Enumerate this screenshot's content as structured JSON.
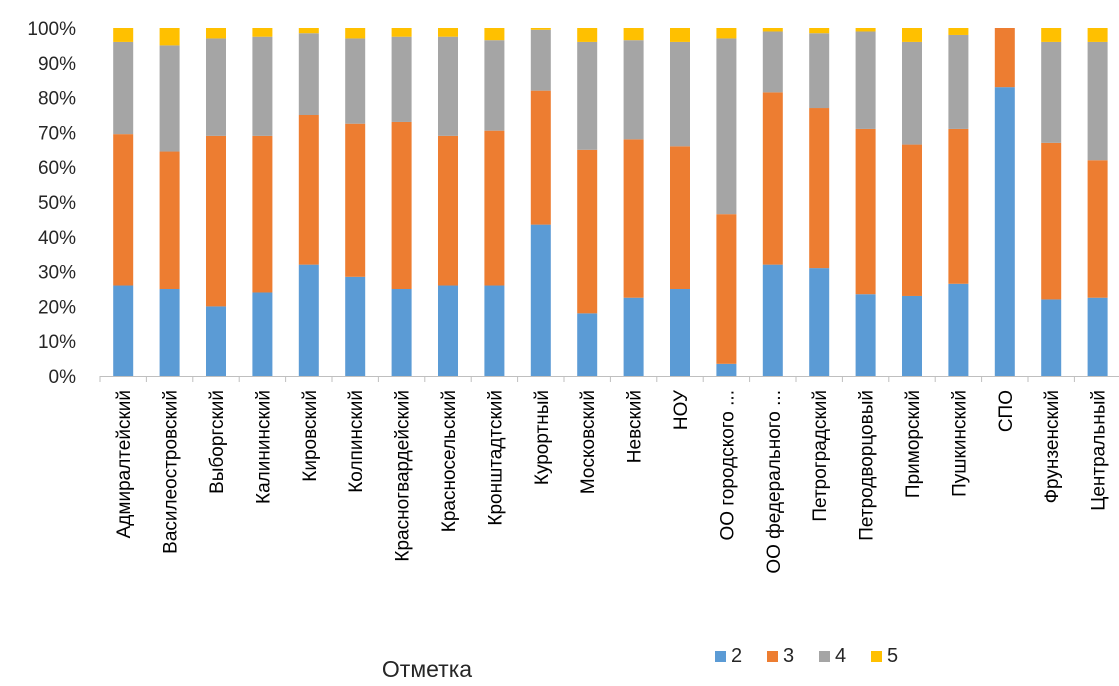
{
  "chart_data": {
    "type": "bar",
    "stacked": true,
    "percent": true,
    "title": "Отметка",
    "categories": [
      "Адмиралтейский",
      "Василеостровский",
      "Выборгский",
      "Калининский",
      "Кировский",
      "Колпинский",
      "Красногвардейский",
      "Красносельский",
      "Кронштадтский",
      "Курортный",
      "Московский",
      "Невский",
      "НОУ",
      "ОО городского ...",
      "ОО федерального ...",
      "Петроградский",
      "Петродворцовый",
      "Приморский",
      "Пушкинский",
      "СПО",
      "Фрунзенский",
      "Центральный"
    ],
    "series": [
      {
        "name": "2",
        "color": "#5B9BD5",
        "values": [
          26,
          25,
          20,
          24,
          32,
          28.5,
          25,
          26,
          26,
          43.5,
          18,
          22.5,
          25,
          3.5,
          32,
          31,
          23.5,
          23,
          26.5,
          83,
          22,
          22.5
        ]
      },
      {
        "name": "3",
        "color": "#ED7D31",
        "values": [
          43.5,
          39.5,
          49,
          45,
          43,
          44,
          48,
          43,
          44.5,
          38.5,
          47,
          45.5,
          41,
          43,
          49.5,
          46,
          47.5,
          43.5,
          44.5,
          17,
          45,
          39.5
        ]
      },
      {
        "name": "4",
        "color": "#A5A5A5",
        "values": [
          26.5,
          30.5,
          28,
          28.5,
          23.5,
          24.5,
          24.5,
          28.5,
          26,
          17.5,
          31,
          28.5,
          30,
          50.5,
          17.5,
          21.5,
          28,
          29.5,
          27,
          0,
          29,
          34
        ]
      },
      {
        "name": "5",
        "color": "#FFC000",
        "values": [
          4,
          5,
          3,
          2.5,
          1.5,
          3,
          2.5,
          2.5,
          3.5,
          0.5,
          4,
          3.5,
          4,
          3,
          1,
          1.5,
          1,
          4,
          2,
          0,
          4,
          4
        ]
      }
    ],
    "y_ticks": [
      "0%",
      "10%",
      "20%",
      "30%",
      "40%",
      "50%",
      "60%",
      "70%",
      "80%",
      "90%",
      "100%"
    ],
    "ylim": [
      0,
      100
    ],
    "grid": false,
    "legend_position": "bottom-right"
  }
}
